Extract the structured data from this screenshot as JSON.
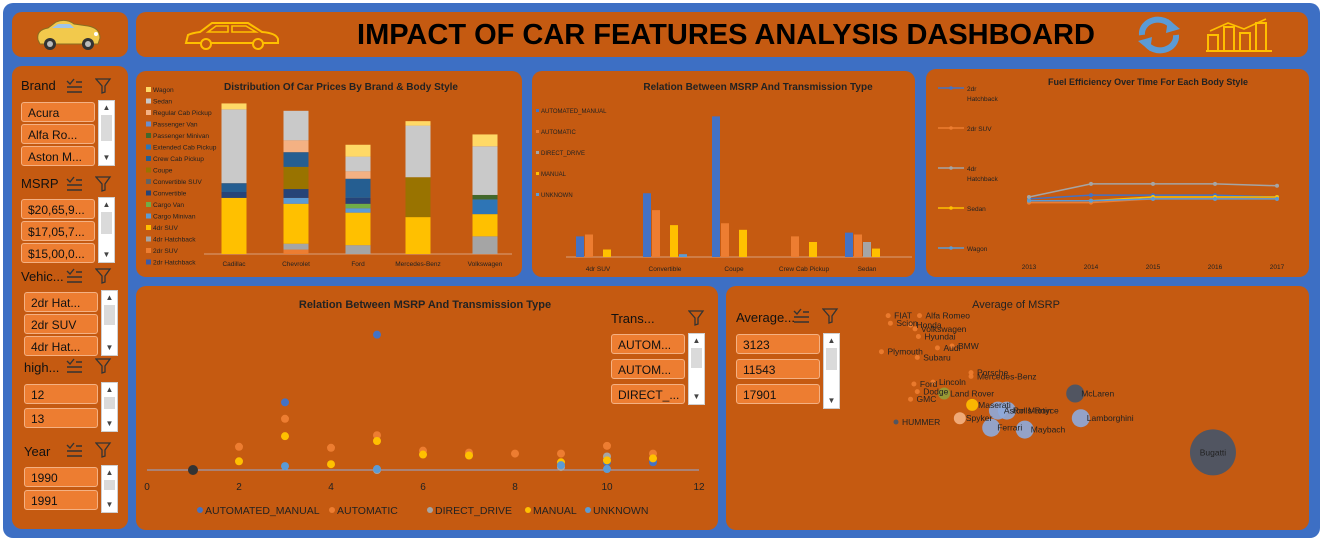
{
  "header": {
    "title": "IMPACT OF CAR FEATURES ANALYSIS DASHBOARD",
    "refresh_icon": "refresh-icon",
    "chart_icon": "bar-chart-icon",
    "logo_icon": "convertible-car-icon",
    "car_outline_icon": "car-outline-icon"
  },
  "slicers": {
    "brand": {
      "title": "Brand",
      "items": [
        "Acura",
        "Alfa Ro...",
        "Aston M..."
      ]
    },
    "msrp": {
      "title": "MSRP",
      "items": [
        "$20,65,9...",
        "$17,05,7...",
        "$15,00,0..."
      ]
    },
    "vehicle": {
      "title": "Vehic...",
      "items": [
        "2dr Hat...",
        "2dr SUV",
        "4dr Hat..."
      ]
    },
    "highway": {
      "title": "high...",
      "items": [
        "12",
        "13"
      ]
    },
    "year": {
      "title": "Year",
      "items": [
        "1990",
        "1991"
      ]
    },
    "transmission": {
      "title": "Trans...",
      "items": [
        "AUTOM...",
        "AUTOM...",
        "DIRECT_..."
      ]
    },
    "average": {
      "title": "Average...",
      "items": [
        "3123",
        "11543",
        "17901"
      ]
    }
  },
  "colors": {
    "panel": "#c55a11",
    "frame": "#3d6fc4",
    "chip": "#ed7d31",
    "s_blue": "#4472c4",
    "s_orange": "#ed7d31",
    "s_gray": "#a5a5a5",
    "s_yellow": "#ffc000",
    "s_lightblue": "#5b9bd5",
    "s_green": "#70ad47"
  },
  "chart_data": [
    {
      "type": "bar",
      "stacked": true,
      "title": "Distribution Of Car Prices By Brand & Body Style",
      "categories": [
        "Cadillac",
        "Chevrolet",
        "Ford",
        "Mercedes-Benz",
        "Volkswagen"
      ],
      "legend": [
        "Wagon",
        "Sedan",
        "Regular Cab Pickup",
        "Passenger Van",
        "Passenger Minivan",
        "Extended Cab Pickup",
        "Crew Cab Pickup",
        "Coupe",
        "Convertible SUV",
        "Convertible",
        "Cargo Van",
        "Cargo Minivan",
        "4dr SUV",
        "4dr Hatchback",
        "2dr SUV",
        "2dr Hatchback"
      ],
      "legend_position": "left",
      "series": [
        {
          "name": "2dr Hatchback",
          "values": [
            0,
            0,
            0,
            0,
            0
          ]
        },
        {
          "name": "2dr SUV",
          "values": [
            0,
            3,
            0,
            0,
            0
          ]
        },
        {
          "name": "4dr Hatchback",
          "values": [
            0,
            4,
            6,
            0,
            12
          ]
        },
        {
          "name": "4dr SUV",
          "values": [
            38,
            27,
            22,
            25,
            15
          ]
        },
        {
          "name": "Cargo Minivan",
          "values": [
            0,
            4,
            3,
            0,
            0
          ]
        },
        {
          "name": "Cargo Van",
          "values": [
            0,
            0,
            3,
            0,
            0
          ]
        },
        {
          "name": "Convertible",
          "values": [
            4,
            6,
            4,
            0,
            0
          ]
        },
        {
          "name": "Convertible SUV",
          "values": [
            0,
            0,
            0,
            0,
            0
          ]
        },
        {
          "name": "Coupe",
          "values": [
            0,
            15,
            0,
            27,
            0
          ]
        },
        {
          "name": "Crew Cab Pickup",
          "values": [
            6,
            10,
            13,
            0,
            0
          ]
        },
        {
          "name": "Extended Cab Pickup",
          "values": [
            0,
            0,
            0,
            0,
            10
          ]
        },
        {
          "name": "Passenger Minivan",
          "values": [
            0,
            0,
            0,
            0,
            3
          ]
        },
        {
          "name": "Passenger Van",
          "values": [
            0,
            0,
            0,
            0,
            0
          ]
        },
        {
          "name": "Regular Cab Pickup",
          "values": [
            0,
            8,
            5,
            0,
            0
          ]
        },
        {
          "name": "Sedan",
          "values": [
            50,
            20,
            10,
            35,
            33
          ]
        },
        {
          "name": "Wagon",
          "values": [
            4,
            0,
            8,
            3,
            8
          ]
        }
      ]
    },
    {
      "type": "bar",
      "title": "Relation Between MSRP And Transmission Type",
      "categories": [
        "4dr SUV",
        "Convertible",
        "Coupe",
        "Crew Cab Pickup",
        "Sedan"
      ],
      "legend_position": "left",
      "series": [
        {
          "name": "AUTOMATED_MANUAL",
          "values": [
            22,
            68,
            150,
            0,
            26
          ]
        },
        {
          "name": "AUTOMATIC",
          "values": [
            24,
            50,
            36,
            22,
            24
          ]
        },
        {
          "name": "DIRECT_DRIVE",
          "values": [
            0,
            0,
            0,
            0,
            16
          ]
        },
        {
          "name": "MANUAL",
          "values": [
            8,
            34,
            29,
            16,
            9
          ]
        },
        {
          "name": "UNKNOWN",
          "values": [
            0,
            3,
            0,
            0,
            0
          ]
        }
      ],
      "ylim": [
        0,
        160
      ]
    },
    {
      "type": "line",
      "title": "Fuel Efficiency Over Time For Each Body Style",
      "x": [
        "2013",
        "2014",
        "2015",
        "2016",
        "2017"
      ],
      "legend_position": "left",
      "series": [
        {
          "name": "2dr Hatchback",
          "values": [
            31,
            33,
            33,
            33,
            32
          ]
        },
        {
          "name": "2dr SUV",
          "values": [
            29,
            29,
            31,
            31,
            31
          ]
        },
        {
          "name": "4dr Hatchback",
          "values": [
            32,
            39,
            39,
            39,
            38
          ]
        },
        {
          "name": "Sedan",
          "values": [
            30,
            30,
            32,
            32,
            32
          ]
        },
        {
          "name": "Wagon",
          "values": [
            30,
            30,
            31,
            31,
            31
          ]
        }
      ],
      "ylim": [
        0,
        80
      ]
    },
    {
      "type": "scatter",
      "title": "Relation Between MSRP And Transmission Type",
      "xlim": [
        0,
        12
      ],
      "x_ticks": [
        "0",
        "2",
        "4",
        "6",
        "8",
        "10",
        "12"
      ],
      "legend_position": "bottom",
      "series": [
        {
          "name": "AUTOMATED_MANUAL",
          "points": [
            [
              1,
              0
            ],
            [
              3,
              70
            ],
            [
              5,
              140
            ],
            [
              10,
              8
            ],
            [
              11,
              8
            ]
          ]
        },
        {
          "name": "AUTOMATIC",
          "points": [
            [
              1,
              0
            ],
            [
              2,
              24
            ],
            [
              3,
              53
            ],
            [
              4,
              23
            ],
            [
              5,
              36
            ],
            [
              6,
              20
            ],
            [
              7,
              18
            ],
            [
              8,
              17
            ],
            [
              9,
              17
            ],
            [
              10,
              25
            ],
            [
              11,
              17
            ]
          ]
        },
        {
          "name": "DIRECT_DRIVE",
          "points": [
            [
              1,
              0
            ],
            [
              5,
              0
            ],
            [
              9,
              3
            ],
            [
              10,
              14
            ]
          ]
        },
        {
          "name": "MANUAL",
          "points": [
            [
              1,
              0
            ],
            [
              2,
              9
            ],
            [
              3,
              35
            ],
            [
              4,
              6
            ],
            [
              5,
              30
            ],
            [
              6,
              16
            ],
            [
              7,
              15
            ],
            [
              9,
              8
            ],
            [
              10,
              10
            ],
            [
              11,
              12
            ]
          ]
        },
        {
          "name": "UNKNOWN",
          "points": [
            [
              1,
              0
            ],
            [
              3,
              4
            ],
            [
              5,
              1
            ],
            [
              9,
              5
            ],
            [
              10,
              1
            ]
          ]
        }
      ],
      "ylim": [
        0,
        150
      ]
    },
    {
      "type": "scatter",
      "bubble": true,
      "title": "Average of MSRP",
      "labels": [
        {
          "name": "FIAT",
          "x": 0.18,
          "y": 0.96,
          "size": 1
        },
        {
          "name": "Alfa Romeo",
          "x": 0.46,
          "y": 0.96,
          "size": 1
        },
        {
          "name": "Scion",
          "x": 0.2,
          "y": 0.92,
          "size": 1
        },
        {
          "name": "Honda",
          "x": 0.38,
          "y": 0.91,
          "size": 1
        },
        {
          "name": "Volkswagen",
          "x": 0.42,
          "y": 0.89,
          "size": 1
        },
        {
          "name": "Hyundai",
          "x": 0.45,
          "y": 0.85,
          "size": 1
        },
        {
          "name": "Audi",
          "x": 0.62,
          "y": 0.79,
          "size": 1
        },
        {
          "name": "BMW",
          "x": 0.75,
          "y": 0.8,
          "size": 1
        },
        {
          "name": "Plymouth",
          "x": 0.12,
          "y": 0.77,
          "size": 1
        },
        {
          "name": "Subaru",
          "x": 0.44,
          "y": 0.74,
          "size": 1
        },
        {
          "name": "Porsche",
          "x": 0.92,
          "y": 0.66,
          "size": 1
        },
        {
          "name": "Mercedes-Benz",
          "x": 0.92,
          "y": 0.64,
          "size": 1
        },
        {
          "name": "Ford",
          "x": 0.41,
          "y": 0.6,
          "size": 1
        },
        {
          "name": "Lincoln",
          "x": 0.58,
          "y": 0.61,
          "size": 1
        },
        {
          "name": "Dodge",
          "x": 0.44,
          "y": 0.56,
          "size": 1
        },
        {
          "name": "Land Rover",
          "x": 0.68,
          "y": 0.55,
          "size": 2
        },
        {
          "name": "GMC",
          "x": 0.38,
          "y": 0.52,
          "size": 1
        },
        {
          "name": "McLaren",
          "x": 1.85,
          "y": 0.55,
          "size": 3
        },
        {
          "name": "Maserati",
          "x": 0.93,
          "y": 0.49,
          "size": 2
        },
        {
          "name": "Aston Martin",
          "x": 1.16,
          "y": 0.46,
          "size": 3
        },
        {
          "name": "Rolls-Royce",
          "x": 1.24,
          "y": 0.46,
          "size": 3
        },
        {
          "name": "Lamborghini",
          "x": 1.9,
          "y": 0.42,
          "size": 3
        },
        {
          "name": "Spyker",
          "x": 0.82,
          "y": 0.42,
          "size": 2
        },
        {
          "name": "HUMMER",
          "x": 0.25,
          "y": 0.4,
          "size": 1
        },
        {
          "name": "Ferrari",
          "x": 1.1,
          "y": 0.37,
          "size": 3
        },
        {
          "name": "Maybach",
          "x": 1.4,
          "y": 0.36,
          "size": 3
        },
        {
          "name": "Bugatti",
          "x": 3.08,
          "y": 0.24,
          "size": 6
        }
      ]
    }
  ]
}
